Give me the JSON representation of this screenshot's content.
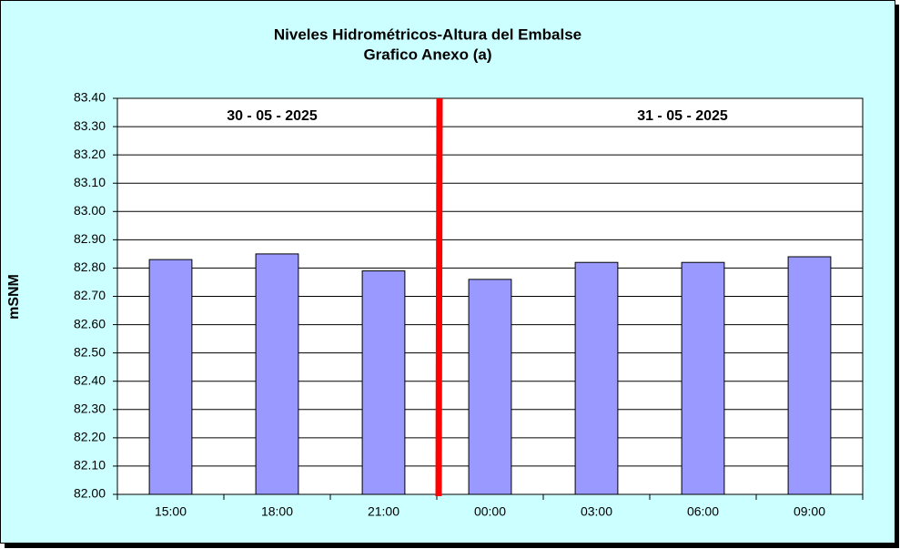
{
  "chart_data": {
    "type": "bar",
    "title": "Niveles Hidrométricos-Altura del Embalse",
    "subtitle": "Grafico Anexo (a)",
    "y_label": "mSNM",
    "annotations": [
      "30 - 05 - 2025",
      "31 - 05 - 2025"
    ],
    "categories": [
      "15:00",
      "18:00",
      "21:00",
      "00:00",
      "03:00",
      "06:00",
      "09:00"
    ],
    "values": [
      82.83,
      82.85,
      82.79,
      82.76,
      82.82,
      82.82,
      82.84
    ],
    "color": "#9999ff",
    "ylim": [
      82.0,
      83.4
    ],
    "yticks": [
      {
        "value": 82.0,
        "label": "82.00"
      },
      {
        "value": 82.1,
        "label": "82.10"
      },
      {
        "value": 82.2,
        "label": "82.20"
      },
      {
        "value": 82.3,
        "label": "82.30"
      },
      {
        "value": 82.4,
        "label": "82.40"
      },
      {
        "value": 82.5,
        "label": "82.50"
      },
      {
        "value": 82.6,
        "label": "82.60"
      },
      {
        "value": 82.7,
        "label": "82.70"
      },
      {
        "value": 82.8,
        "label": "82.80"
      },
      {
        "value": 82.9,
        "label": "82.90"
      },
      {
        "value": 83.0,
        "label": "83.00"
      },
      {
        "value": 83.1,
        "label": "83.10"
      },
      {
        "value": 83.2,
        "label": "83.20"
      },
      {
        "value": 83.3,
        "label": "83.30"
      },
      {
        "value": 83.4,
        "label": "83.40"
      }
    ],
    "grid": true
  }
}
